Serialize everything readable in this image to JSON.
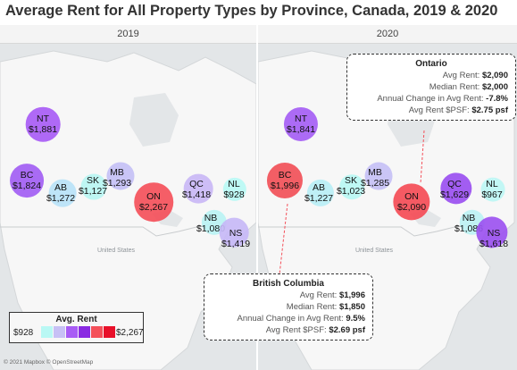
{
  "title": "Average Rent for All Property Types by Province, Canada, 2019 & 2020",
  "panels": [
    {
      "year": "2019",
      "provinces": [
        {
          "code": "NT",
          "rent": "$1,881",
          "value": 1881,
          "color": "#a85cf5"
        },
        {
          "code": "BC",
          "rent": "$1,824",
          "value": 1824,
          "color": "#a25ef3"
        },
        {
          "code": "AB",
          "rent": "$1,272",
          "value": 1272,
          "color": "#b9e2f7"
        },
        {
          "code": "SK",
          "rent": "$1,127",
          "value": 1127,
          "color": "#b8f5f2"
        },
        {
          "code": "MB",
          "rent": "$1,293",
          "value": 1293,
          "color": "#c4c0f5"
        },
        {
          "code": "ON",
          "rent": "$2,267",
          "value": 2267,
          "color": "#f4505a"
        },
        {
          "code": "QC",
          "rent": "$1,418",
          "value": 1418,
          "color": "#c9b7f5"
        },
        {
          "code": "NL",
          "rent": "$928",
          "value": 928,
          "color": "#b9f8f4"
        },
        {
          "code": "NB",
          "rent": "$1,080",
          "value": 1080,
          "color": "#baf2f3"
        },
        {
          "code": "NS",
          "rent": "$1,419",
          "value": 1419,
          "color": "#c7b9f6"
        }
      ]
    },
    {
      "year": "2020",
      "provinces": [
        {
          "code": "NT",
          "rent": "$1,841",
          "value": 1841,
          "color": "#a55ef4"
        },
        {
          "code": "BC",
          "rent": "$1,996",
          "value": 1996,
          "color": "#f15058"
        },
        {
          "code": "AB",
          "rent": "$1,227",
          "value": 1227,
          "color": "#b8eef5"
        },
        {
          "code": "SK",
          "rent": "$1,023",
          "value": 1023,
          "color": "#b8f7f3"
        },
        {
          "code": "MB",
          "rent": "$1,285",
          "value": 1285,
          "color": "#c6c0f5"
        },
        {
          "code": "ON",
          "rent": "$2,090",
          "value": 2090,
          "color": "#f44c56"
        },
        {
          "code": "QC",
          "rent": "$1,629",
          "value": 1629,
          "color": "#9a4ff0"
        },
        {
          "code": "NL",
          "rent": "$967",
          "value": 967,
          "color": "#bdf6f4"
        },
        {
          "code": "NB",
          "rent": "$1,086",
          "value": 1086,
          "color": "#bcf2f3"
        },
        {
          "code": "NS",
          "rent": "$1,618",
          "value": 1618,
          "color": "#9c52f0"
        }
      ]
    }
  ],
  "country_labels": [
    "United States",
    "United States"
  ],
  "tooltips": {
    "ontario": {
      "title": "Ontario",
      "avg_rent_label": "Avg Rent:",
      "avg_rent": "$2,090",
      "median_rent_label": "Median Rent:",
      "median_rent": "$2,000",
      "change_label": "Annual Change in Avg Rent:",
      "change": "-7.8%",
      "psf_label": "Avg Rent $PSF:",
      "psf": "$2.75 psf"
    },
    "british_columbia": {
      "title": "British Columbia",
      "avg_rent_label": "Avg Rent:",
      "avg_rent": "$1,996",
      "median_rent_label": "Median Rent:",
      "median_rent": "$1,850",
      "change_label": "Annual Change in Avg Rent:",
      "change": "9.5%",
      "psf_label": "Avg Rent $PSF:",
      "psf": "$2.69 psf"
    }
  },
  "legend": {
    "title": "Avg. Rent",
    "min": "$928",
    "max": "$2,267",
    "colors": [
      "#b9f8f4",
      "#c7c0f5",
      "#a85cf5",
      "#8a2be2",
      "#f4505a",
      "#e8102a"
    ]
  },
  "attribution": "© 2021 Mapbox © OpenStreetMap"
}
